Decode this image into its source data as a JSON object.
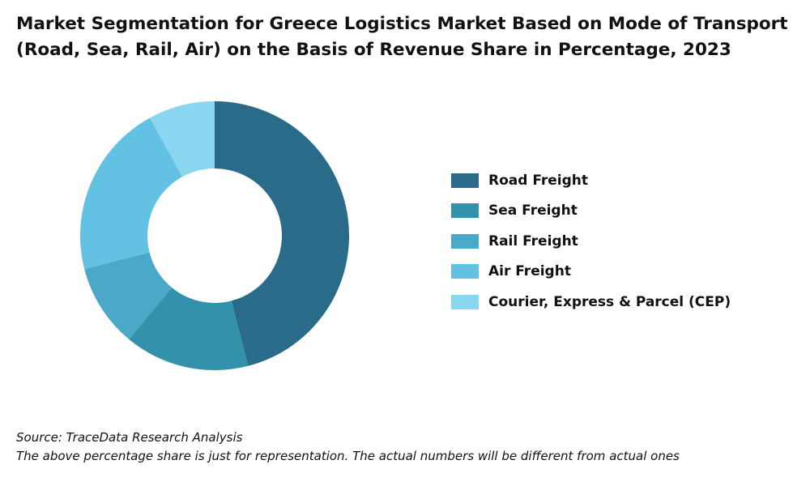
{
  "chart_data": {
    "type": "pie",
    "variant": "donut",
    "title_lines": [
      "Market Segmentation for Greece Logistics Market Based on Mode of Transport",
      "(Road, Sea, Rail, Air) on the Basis of Revenue Share in Percentage, 2023"
    ],
    "categories": [
      "Road Freight",
      "Sea Freight",
      "Rail Freight",
      "Air Freight",
      "Courier, Express & Parcel (CEP)"
    ],
    "values": [
      46,
      15,
      10,
      21,
      8
    ],
    "unit": "%",
    "colors": [
      "#2a6b8a",
      "#3291ab",
      "#4aa8c8",
      "#63c1e4",
      "#89d6f1"
    ],
    "legend_placement": "right"
  },
  "footer": {
    "source": "Source: TraceData Research Analysis",
    "note": "The above percentage share is just for representation. The actual numbers will be different from actual ones"
  }
}
